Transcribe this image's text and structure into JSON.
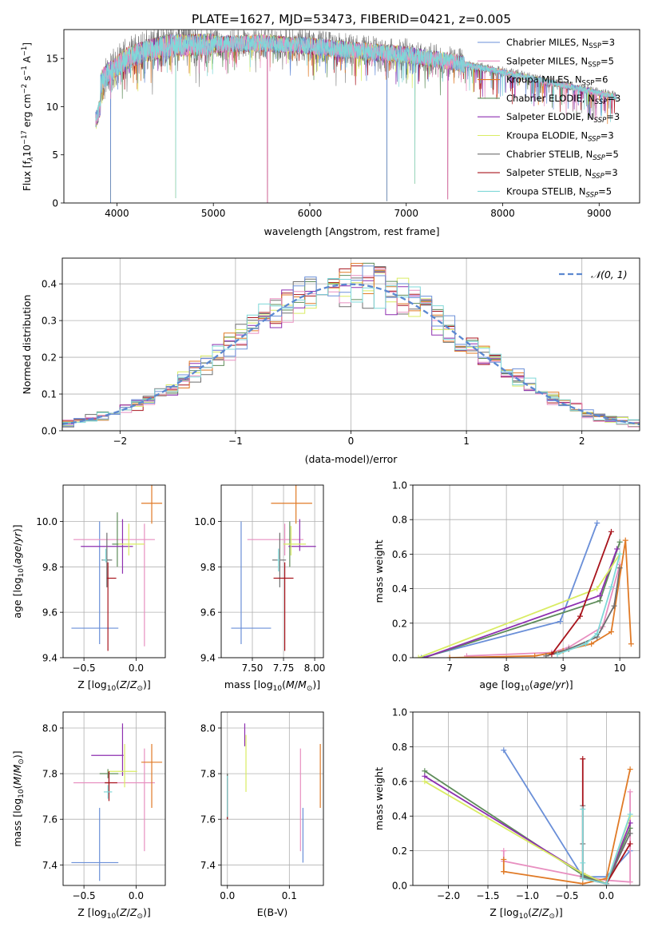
{
  "figure": {
    "title": "PLATE=1627, MJD=53473, FIBERID=0421, z=0.005"
  },
  "series_meta": [
    {
      "name": "Chabrier MILES",
      "sub": "SSP",
      "n": 3,
      "color": "#6a8fd8"
    },
    {
      "name": "Salpeter MILES",
      "sub": "SSP",
      "n": 5,
      "color": "#e88fc0"
    },
    {
      "name": "Kroupa MILES",
      "sub": "SSP",
      "n": 6,
      "color": "#e07a26"
    },
    {
      "name": "Chabrier ELODIE",
      "sub": "SSP",
      "n": 3,
      "color": "#5e8c5a"
    },
    {
      "name": "Salpeter ELODIE",
      "sub": "SSP",
      "n": 3,
      "color": "#8e2fb0"
    },
    {
      "name": "Kroupa ELODIE",
      "sub": "SSP",
      "n": 3,
      "color": "#d9ec63"
    },
    {
      "name": "Chabrier STELIB",
      "sub": "SSP",
      "n": 5,
      "color": "#6e6e6e"
    },
    {
      "name": "Salpeter STELIB",
      "sub": "SSP",
      "n": 3,
      "color": "#a8141c"
    },
    {
      "name": "Kroupa STELIB",
      "sub": "SSP",
      "n": 5,
      "color": "#7fd8d8"
    }
  ],
  "chart_data": [
    {
      "id": "spectrum",
      "type": "line",
      "title": "PLATE=1627, MJD=53473, FIBERID=0421, z=0.005",
      "xlabel": "wavelength [Angstrom, rest frame]",
      "ylabel_parts": [
        "Flux [f",
        "λ",
        "10",
        "−17",
        " erg cm",
        "−2",
        " s",
        "−1",
        " A",
        "−1",
        "]"
      ],
      "xlim": [
        3450,
        9420
      ],
      "ylim": [
        0,
        18
      ],
      "xticks": [
        4000,
        5000,
        6000,
        7000,
        8000,
        9000
      ],
      "yticks": [
        0,
        5,
        10,
        15
      ],
      "legend_position": "top-right",
      "continuum": {
        "x": [
          3780,
          3850,
          3950,
          4100,
          4300,
          4500,
          4800,
          5100,
          5500,
          6000,
          6500,
          7000,
          7500,
          8000,
          8500,
          9000,
          9180
        ],
        "y": [
          10.5,
          12.8,
          13.8,
          15.0,
          15.8,
          16.3,
          16.4,
          16.5,
          16.6,
          16.3,
          15.8,
          15.4,
          14.6,
          13.6,
          12.5,
          11.4,
          11.0
        ]
      },
      "wavelength_range": [
        3780,
        9180
      ],
      "dips": [
        {
          "x": 3935,
          "y": 0.0
        },
        {
          "x": 4610,
          "y": 0.5
        },
        {
          "x": 5560,
          "y": 0.0
        },
        {
          "x": 6800,
          "y": 0.2
        },
        {
          "x": 7090,
          "y": 2.0
        },
        {
          "x": 7430,
          "y": 0.4
        }
      ]
    },
    {
      "id": "residuals",
      "type": "histogram",
      "xlabel": "(data-model)/error",
      "ylabel": "Normed distribution",
      "xlim": [
        -2.5,
        2.5
      ],
      "ylim": [
        0,
        0.47
      ],
      "xticks": [
        -2,
        -1,
        0,
        1,
        2
      ],
      "yticks": [
        0.0,
        0.1,
        0.2,
        0.3,
        0.4
      ],
      "reference": {
        "name": "𝒩(0, 1)",
        "type": "gaussian",
        "mean": 0,
        "sigma": 1
      },
      "bin_width": 0.1
    },
    {
      "id": "age-vs-Z",
      "type": "errorbar",
      "xlabel": "Z [log10(Z/Z⊙)]",
      "ylabel": "age  [log10(age/yr)]",
      "xlim": [
        -0.7,
        0.28
      ],
      "ylim": [
        9.4,
        10.16
      ],
      "xticks": [
        -0.5,
        0.0
      ],
      "yticks": [
        9.4,
        9.6,
        9.8,
        10.0
      ],
      "points": [
        {
          "x": -0.35,
          "y": 9.53,
          "xerr": [
            0.27,
            0.18
          ],
          "yerr": [
            0.07,
            0.47
          ]
        },
        {
          "x": 0.08,
          "y": 9.92,
          "xerr": [
            0.68,
            0.1
          ],
          "yerr": [
            0.47,
            0.07
          ]
        },
        {
          "x": 0.15,
          "y": 10.08,
          "xerr": [
            0.1,
            0.1
          ],
          "yerr": [
            0.09,
            0.1
          ]
        },
        {
          "x": -0.18,
          "y": 9.9,
          "xerr": [
            0.05,
            0.05
          ],
          "yerr": [
            0.1,
            0.14
          ]
        },
        {
          "x": -0.13,
          "y": 9.89,
          "xerr": [
            0.4,
            0.1
          ],
          "yerr": [
            0.12,
            0.12
          ]
        },
        {
          "x": -0.07,
          "y": 9.9,
          "xerr": [
            0.1,
            0.15
          ],
          "yerr": [
            0.05,
            0.09
          ]
        },
        {
          "x": -0.28,
          "y": 9.83,
          "xerr": [
            0.05,
            0.05
          ],
          "yerr": [
            0.12,
            0.12
          ]
        },
        {
          "x": -0.27,
          "y": 9.75,
          "xerr": [
            0.01,
            0.08
          ],
          "yerr": [
            0.32,
            0.07
          ]
        },
        {
          "x": -0.29,
          "y": 9.83,
          "xerr": [
            0.03,
            0.01
          ],
          "yerr": [
            0.01,
            0.05
          ]
        }
      ]
    },
    {
      "id": "age-vs-mass",
      "type": "errorbar",
      "xlabel": "mass [log10(M/M⊙)]",
      "ylabel": "",
      "xlim": [
        7.25,
        8.07
      ],
      "ylim": [
        9.4,
        10.16
      ],
      "xticks": [
        7.5,
        7.75,
        8.0
      ],
      "yticks": [
        9.4,
        9.6,
        9.8,
        10.0
      ],
      "points": [
        {
          "x": 7.41,
          "y": 9.53,
          "xerr": [
            0.08,
            0.24
          ],
          "yerr": [
            0.07,
            0.47
          ]
        },
        {
          "x": 7.76,
          "y": 9.92,
          "xerr": [
            0.3,
            0.15
          ],
          "yerr": [
            0.07,
            0.07
          ]
        },
        {
          "x": 7.85,
          "y": 10.08,
          "xerr": [
            0.2,
            0.13
          ],
          "yerr": [
            0.09,
            0.09
          ]
        },
        {
          "x": 7.8,
          "y": 9.9,
          "xerr": [
            0.01,
            0.01
          ],
          "yerr": [
            0.1,
            0.1
          ]
        },
        {
          "x": 7.88,
          "y": 9.89,
          "xerr": [
            0.09,
            0.13
          ],
          "yerr": [
            0.02,
            0.12
          ]
        },
        {
          "x": 7.81,
          "y": 9.9,
          "xerr": [
            0.06,
            0.12
          ],
          "yerr": [
            0.05,
            0.08
          ]
        },
        {
          "x": 7.72,
          "y": 9.83,
          "xerr": [
            0.06,
            0.05
          ],
          "yerr": [
            0.12,
            0.12
          ]
        },
        {
          "x": 7.76,
          "y": 9.75,
          "xerr": [
            0.09,
            0.07
          ],
          "yerr": [
            0.32,
            0.07
          ]
        },
        {
          "x": 7.71,
          "y": 9.83,
          "xerr": [
            0.01,
            0.01
          ],
          "yerr": [
            0.05,
            0.05
          ]
        }
      ]
    },
    {
      "id": "weight-vs-age",
      "type": "line",
      "xlabel": "age  [log10(age/yr)]",
      "ylabel": "mass weight",
      "xlim": [
        6.35,
        10.35
      ],
      "ylim": [
        0,
        1.0
      ],
      "xticks": [
        7,
        8,
        9,
        10
      ],
      "yticks": [
        0.0,
        0.2,
        0.4,
        0.6,
        0.8,
        1.0
      ],
      "series": [
        {
          "x": [
            6.5,
            8.95,
            9.6
          ],
          "y": [
            0.0,
            0.21,
            0.78
          ]
        },
        {
          "x": [
            7.3,
            8.8,
            9.1,
            9.7,
            10.0
          ],
          "y": [
            0.01,
            0.03,
            0.06,
            0.18,
            0.54
          ]
        },
        {
          "x": [
            7.0,
            8.5,
            9.0,
            9.5,
            9.85,
            10.1,
            10.2
          ],
          "y": [
            0.0,
            0.01,
            0.04,
            0.08,
            0.15,
            0.68,
            0.08
          ]
        },
        {
          "x": [
            6.55,
            9.65,
            10.0
          ],
          "y": [
            0.0,
            0.33,
            0.67
          ]
        },
        {
          "x": [
            6.55,
            9.65,
            9.95
          ],
          "y": [
            0.0,
            0.36,
            0.63
          ]
        },
        {
          "x": [
            6.45,
            9.6,
            10.0
          ],
          "y": [
            0.0,
            0.4,
            0.6
          ]
        },
        {
          "x": [
            8.7,
            9.1,
            9.6,
            9.9,
            10.0
          ],
          "y": [
            0.01,
            0.05,
            0.12,
            0.3,
            0.52
          ]
        },
        {
          "x": [
            8.8,
            9.3,
            9.85
          ],
          "y": [
            0.02,
            0.24,
            0.73
          ]
        },
        {
          "x": [
            8.9,
            9.4,
            9.6,
            9.85,
            10.0
          ],
          "y": [
            0.02,
            0.08,
            0.14,
            0.41,
            0.6
          ]
        }
      ]
    },
    {
      "id": "mass-vs-Z",
      "type": "errorbar",
      "xlabel": "Z [log10(Z/Z⊙)]",
      "ylabel": "mass [log10(M/M⊙)]",
      "xlim": [
        -0.7,
        0.28
      ],
      "ylim": [
        7.31,
        8.07
      ],
      "xticks": [
        -0.5,
        0.0
      ],
      "yticks": [
        7.4,
        7.6,
        7.8,
        8.0
      ],
      "points": [
        {
          "x": -0.35,
          "y": 7.41,
          "xerr": [
            0.27,
            0.18
          ],
          "yerr": [
            0.08,
            0.24
          ]
        },
        {
          "x": 0.08,
          "y": 7.76,
          "xerr": [
            0.68,
            0.1
          ],
          "yerr": [
            0.3,
            0.15
          ]
        },
        {
          "x": 0.15,
          "y": 7.85,
          "xerr": [
            0.1,
            0.1
          ],
          "yerr": [
            0.2,
            0.08
          ]
        },
        {
          "x": -0.27,
          "y": 7.8,
          "xerr": [
            0.08,
            0.1
          ],
          "yerr": [
            0.02,
            0.02
          ]
        },
        {
          "x": -0.13,
          "y": 7.88,
          "xerr": [
            0.3,
            0.01
          ],
          "yerr": [
            0.09,
            0.14
          ]
        },
        {
          "x": -0.11,
          "y": 7.81,
          "xerr": [
            0.16,
            0.12
          ],
          "yerr": [
            0.07,
            0.12
          ]
        },
        {
          "x": -0.26,
          "y": 7.76,
          "xerr": [
            0.04,
            0.01
          ],
          "yerr": [
            0.05,
            0.05
          ]
        },
        {
          "x": -0.26,
          "y": 7.76,
          "xerr": [
            0.04,
            0.08
          ],
          "yerr": [
            0.08,
            0.05
          ]
        },
        {
          "x": -0.27,
          "y": 7.72,
          "xerr": [
            0.04,
            0.04
          ],
          "yerr": [
            0.03,
            0.03
          ]
        }
      ]
    },
    {
      "id": "mass-vs-ebv",
      "type": "errorbar",
      "xlabel": "E(B-V)",
      "ylabel": "",
      "xlim": [
        -0.01,
        0.155
      ],
      "ylim": [
        7.31,
        8.07
      ],
      "xticks": [
        0.0,
        0.1
      ],
      "yticks": [
        7.4,
        7.6,
        7.8,
        8.0
      ],
      "points": [
        {
          "x": 0.122,
          "y": 7.41,
          "xerr": [
            0,
            0
          ],
          "yerr": [
            0.0,
            0.24
          ]
        },
        {
          "x": 0.118,
          "y": 7.76,
          "xerr": [
            0,
            0
          ],
          "yerr": [
            0.3,
            0.15
          ]
        },
        {
          "x": 0.15,
          "y": 7.85,
          "xerr": [
            0,
            0
          ],
          "yerr": [
            0.2,
            0.08
          ]
        },
        {
          "x": 0.0,
          "y": 7.7,
          "xerr": [
            0,
            0
          ],
          "yerr": [
            0.1,
            0.1
          ]
        },
        {
          "x": 0.028,
          "y": 7.95,
          "xerr": [
            0,
            0
          ],
          "yerr": [
            0.03,
            0.07
          ]
        },
        {
          "x": 0.03,
          "y": 7.84,
          "xerr": [
            0,
            0
          ],
          "yerr": [
            0.12,
            0.13
          ]
        },
        {
          "x": 0.0,
          "y": 7.7,
          "xerr": [
            0,
            0
          ],
          "yerr": [
            0.1,
            0.1
          ]
        },
        {
          "x": 0.0,
          "y": 7.7,
          "xerr": [
            0,
            0
          ],
          "yerr": [
            0.1,
            0.08
          ]
        },
        {
          "x": 0.0,
          "y": 7.7,
          "xerr": [
            0,
            0
          ],
          "yerr": [
            0.09,
            0.09
          ]
        }
      ]
    },
    {
      "id": "weight-vs-Z",
      "type": "line",
      "xlabel": "Z [log10(Z/Z⊙)]",
      "ylabel": "mass weight",
      "xlim": [
        -2.45,
        0.42
      ],
      "ylim": [
        0,
        1.0
      ],
      "xticks": [
        -2.0,
        -1.5,
        -1.0,
        -0.5,
        0.0
      ],
      "yticks": [
        0.0,
        0.2,
        0.4,
        0.6,
        0.8,
        1.0
      ],
      "series": [
        {
          "x": [
            -1.3,
            -0.3,
            0.0,
            0.3
          ],
          "y": [
            0.78,
            0.05,
            0.05,
            0.2
          ]
        },
        {
          "x": [
            -1.3,
            -1.3,
            -0.3,
            0.0,
            0.3,
            0.3
          ],
          "y": [
            0.2,
            0.14,
            0.05,
            0.03,
            0.02,
            0.54
          ]
        },
        {
          "x": [
            -1.3,
            -1.3,
            -1.3,
            -0.3,
            0.0,
            0.3
          ],
          "y": [
            0.15,
            0.08,
            0.08,
            0.01,
            0.04,
            0.67
          ]
        },
        {
          "x": [
            -2.3,
            -0.3,
            0.0,
            0.3
          ],
          "y": [
            0.66,
            0.06,
            0.01,
            0.33
          ]
        },
        {
          "x": [
            -2.3,
            -0.3,
            0.0,
            0.3
          ],
          "y": [
            0.63,
            0.07,
            0.01,
            0.36
          ]
        },
        {
          "x": [
            -2.3,
            -0.3,
            0.0,
            0.3
          ],
          "y": [
            0.6,
            0.07,
            0.01,
            0.4
          ]
        },
        {
          "x": [
            -0.3,
            -0.3,
            -0.3,
            0.0,
            0.3
          ],
          "y": [
            0.46,
            0.24,
            0.05,
            0.01,
            0.3
          ]
        },
        {
          "x": [
            -0.3,
            -0.3,
            0.0,
            0.3
          ],
          "y": [
            0.73,
            0.04,
            0.01,
            0.24
          ]
        },
        {
          "x": [
            -0.3,
            -0.3,
            -0.3,
            0.0,
            0.3
          ],
          "y": [
            0.44,
            0.13,
            0.04,
            0.01,
            0.41
          ]
        }
      ]
    }
  ]
}
